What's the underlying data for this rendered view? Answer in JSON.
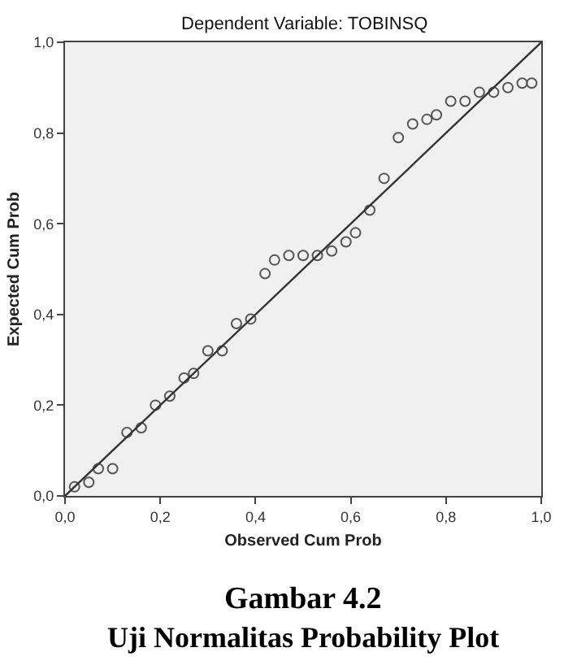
{
  "chart_data": {
    "type": "scatter",
    "title": "Dependent Variable: TOBINSQ",
    "xlabel": "Observed Cum Prob",
    "ylabel": "Expected Cum Prob",
    "annotations": [
      "Gambar 4.2",
      "Uji Normalitas Probability Plot"
    ],
    "series": [
      {
        "color": "#555555",
        "marker": "circle",
        "x": [
          0.02,
          0.05,
          0.07,
          0.1,
          0.13,
          0.16,
          0.19,
          0.22,
          0.25,
          0.27,
          0.3,
          0.33,
          0.36,
          0.39,
          0.42,
          0.44,
          0.47,
          0.5,
          0.53,
          0.56,
          0.59,
          0.61,
          0.64,
          0.67,
          0.7,
          0.73,
          0.76,
          0.78,
          0.81,
          0.84,
          0.87,
          0.9,
          0.93,
          0.96,
          0.98
        ],
        "values": [
          0.02,
          0.03,
          0.06,
          0.06,
          0.14,
          0.15,
          0.2,
          0.22,
          0.26,
          0.27,
          0.32,
          0.32,
          0.38,
          0.39,
          0.49,
          0.52,
          0.53,
          0.53,
          0.53,
          0.54,
          0.56,
          0.58,
          0.63,
          0.7,
          0.79,
          0.82,
          0.83,
          0.84,
          0.87,
          0.87,
          0.89,
          0.89,
          0.9,
          0.91,
          0.91
        ]
      },
      {
        "type": "line",
        "color": "#333333",
        "x": [
          0,
          1
        ],
        "values": [
          0,
          1
        ]
      }
    ],
    "xlim": [
      0,
      1
    ],
    "ylim": [
      0,
      1
    ],
    "xticks": [
      {
        "value": 0,
        "label": "0,0"
      },
      {
        "value": 0.2,
        "label": "0,2"
      },
      {
        "value": 0.4,
        "label": "0,4"
      },
      {
        "value": 0.6,
        "label": "0,6"
      },
      {
        "value": 0.8,
        "label": "0,8"
      },
      {
        "value": 1,
        "label": "1,0"
      }
    ],
    "yticks": [
      {
        "value": 0,
        "label": "0,0"
      },
      {
        "value": 0.2,
        "label": "0,2"
      },
      {
        "value": 0.4,
        "label": "0,4"
      },
      {
        "value": 0.6,
        "label": "0,6"
      },
      {
        "value": 0.8,
        "label": "0,8"
      },
      {
        "value": 1,
        "label": "1,0"
      }
    ],
    "grid": false
  }
}
